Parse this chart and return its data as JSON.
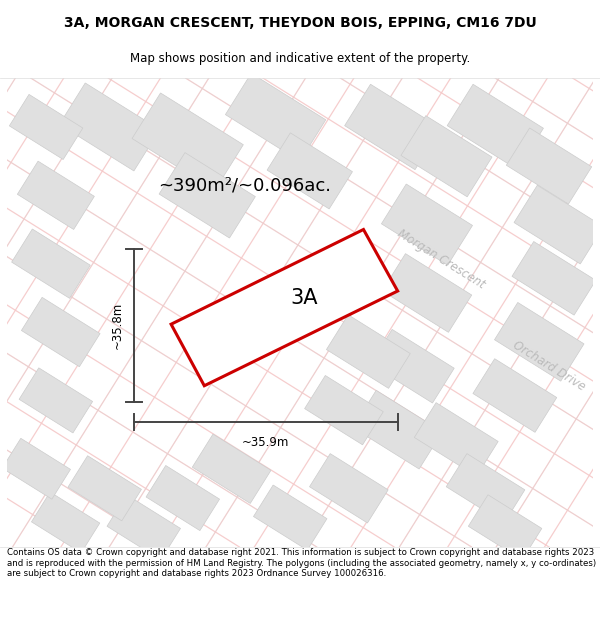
{
  "title_line1": "3A, MORGAN CRESCENT, THEYDON BOIS, EPPING, CM16 7DU",
  "title_line2": "Map shows position and indicative extent of the property.",
  "area_label": "~390m²/~0.096ac.",
  "plot_label": "3A",
  "dim_vertical": "~35.8m",
  "dim_horizontal": "~35.9m",
  "road_label1": "Morgan Crescent",
  "road_label2": "Orchard Drive",
  "footer": "Contains OS data © Crown copyright and database right 2021. This information is subject to Crown copyright and database rights 2023 and is reproduced with the permission of HM Land Registry. The polygons (including the associated geometry, namely x, y co-ordinates) are subject to Crown copyright and database rights 2023 Ordnance Survey 100026316.",
  "map_bg": "#ffffff",
  "building_fill": "#e0e0e0",
  "building_edge": "#cccccc",
  "road_line_color": "#f5c8c8",
  "road_line_color2": "#d8d8d8",
  "plot_outline_color": "#cc0000",
  "plot_fill_color": "#ffffff",
  "dim_line_color": "#444444",
  "road_band_color": "#f5c8c8",
  "title_fontsize": 10,
  "subtitle_fontsize": 8.5,
  "area_fontsize": 13,
  "label_fontsize": 15,
  "footer_fontsize": 6.2,
  "road_label_fontsize": 8.5
}
